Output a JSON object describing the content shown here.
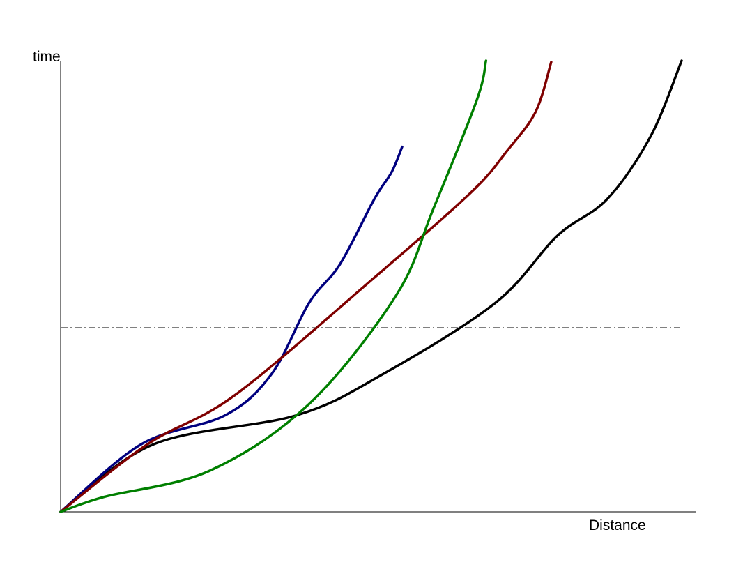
{
  "chart_data": {
    "type": "line",
    "title": "",
    "xlabel": "Distance",
    "ylabel": "time",
    "xlim": [
      0,
      100
    ],
    "ylim": [
      0,
      100
    ],
    "axis_ticks": "none",
    "grid": false,
    "legend": "none",
    "reference_lines": {
      "vertical_x": 50,
      "horizontal_y": 40.8,
      "style": "dash-dot",
      "color": "#000000"
    },
    "series": [
      {
        "color": "#000000",
        "x": [
          0,
          15,
          38,
          52,
          70,
          80,
          88,
          95,
          100
        ],
        "y": [
          0,
          15,
          21.4,
          30.6,
          46.3,
          61.2,
          69.3,
          83.2,
          100
        ]
      },
      {
        "color": "#00007f",
        "x": [
          0,
          13,
          26.5,
          34,
          40,
          45,
          50.5,
          53.3,
          55
        ],
        "y": [
          0,
          15,
          21.4,
          30.6,
          46.3,
          54.9,
          69.3,
          75.3,
          80.9
        ]
      },
      {
        "color": "#7f0000",
        "x": [
          0,
          14,
          28,
          50,
          66,
          72,
          76.5,
          79
        ],
        "y": [
          0,
          15,
          25.8,
          51.3,
          70.7,
          80.2,
          88.7,
          99.7
        ]
      },
      {
        "color": "#007f00",
        "x": [
          0,
          7,
          24,
          40,
          54,
          60,
          67,
          68.5
        ],
        "y": [
          0,
          3.3,
          9.1,
          23.9,
          47.9,
          67.1,
          91.2,
          100
        ]
      }
    ]
  }
}
